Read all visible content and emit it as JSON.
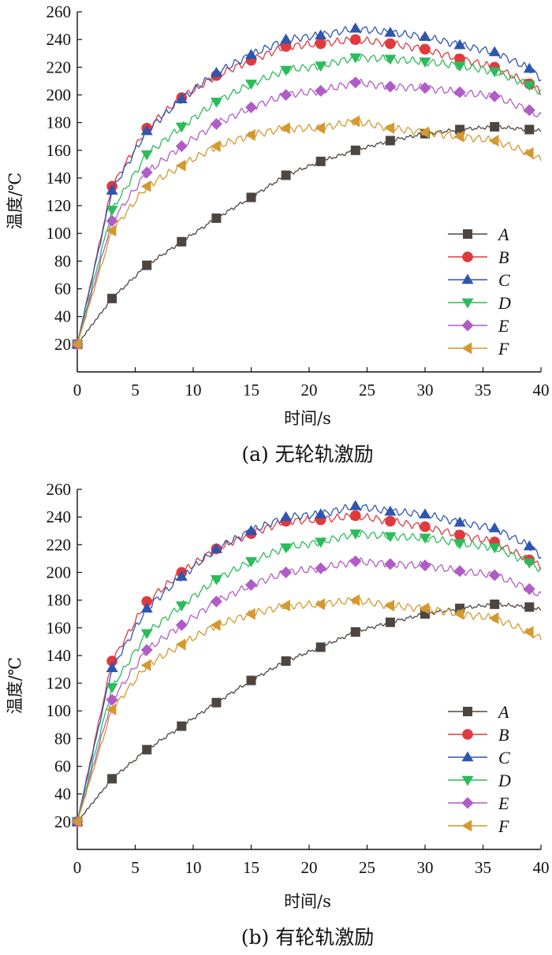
{
  "figures": [
    {
      "caption": "(a)  无轮轨激励",
      "chart_data": {
        "type": "line",
        "xlabel": "时间/s",
        "ylabel": "温度/℃",
        "xlim": [
          0,
          40
        ],
        "ylim": [
          0,
          260
        ],
        "xticks": [
          0,
          5,
          10,
          15,
          20,
          25,
          30,
          35,
          40
        ],
        "yticks": [
          20,
          40,
          60,
          80,
          100,
          120,
          140,
          160,
          180,
          200,
          220,
          240,
          260
        ],
        "x_tick_labels": [
          "0",
          "5",
          "10",
          "15",
          "20",
          "25",
          "30",
          "35",
          "40"
        ],
        "y_tick_labels": [
          "20",
          "40",
          "60",
          "80",
          "100",
          "120",
          "140",
          "160",
          "180",
          "200",
          "220",
          "240",
          "260"
        ],
        "grid": false,
        "legend_position": "bottom-right",
        "series": [
          {
            "name": "A",
            "color": "#4d4540",
            "marker": "square",
            "x": [
              0,
              3,
              6,
              9,
              12,
              15,
              18,
              21,
              24,
              27,
              30,
              33,
              36,
              39,
              40
            ],
            "y": [
              20,
              53,
              77,
              94,
              111,
              126,
              142,
              152,
              160,
              167,
              172,
              175,
              177,
              175,
              174
            ]
          },
          {
            "name": "B",
            "color": "#e0393e",
            "marker": "circle",
            "x": [
              0,
              3,
              6,
              9,
              12,
              15,
              18,
              21,
              24,
              27,
              30,
              33,
              36,
              39,
              40
            ],
            "y": [
              20,
              134,
              176,
              198,
              214,
              225,
              235,
              237,
              240,
              237,
              233,
              226,
              220,
              208,
              202
            ]
          },
          {
            "name": "C",
            "color": "#2d56b0",
            "marker": "triangle-up",
            "x": [
              0,
              3,
              6,
              9,
              12,
              15,
              18,
              21,
              24,
              27,
              30,
              33,
              36,
              39,
              40
            ],
            "y": [
              20,
              131,
              174,
              197,
              216,
              229,
              240,
              243,
              248,
              245,
              242,
              236,
              231,
              219,
              212
            ]
          },
          {
            "name": "D",
            "color": "#2bbc5a",
            "marker": "triangle-down",
            "x": [
              0,
              3,
              6,
              9,
              12,
              15,
              18,
              21,
              24,
              27,
              30,
              33,
              36,
              39,
              40
            ],
            "y": [
              20,
              117,
              157,
              177,
              195,
              208,
              218,
              221,
              227,
              226,
              224,
              221,
              217,
              207,
              202
            ]
          },
          {
            "name": "E",
            "color": "#b05cc8",
            "marker": "diamond",
            "x": [
              0,
              3,
              6,
              9,
              12,
              15,
              18,
              21,
              24,
              27,
              30,
              33,
              36,
              39,
              40
            ],
            "y": [
              20,
              109,
              144,
              163,
              179,
              191,
              200,
              203,
              209,
              206,
              205,
              202,
              199,
              189,
              184
            ]
          },
          {
            "name": "F",
            "color": "#d4992e",
            "marker": "triangle-left",
            "x": [
              0,
              3,
              6,
              9,
              12,
              15,
              18,
              21,
              24,
              27,
              30,
              33,
              36,
              39,
              40
            ],
            "y": [
              20,
              102,
              134,
              149,
              163,
              171,
              176,
              176,
              181,
              176,
              173,
              170,
              167,
              158,
              153
            ]
          }
        ]
      }
    },
    {
      "caption": "(b)  有轮轨激励",
      "chart_data": {
        "type": "line",
        "xlabel": "时间/s",
        "ylabel": "温度/℃",
        "xlim": [
          0,
          40
        ],
        "ylim": [
          0,
          260
        ],
        "xticks": [
          0,
          5,
          10,
          15,
          20,
          25,
          30,
          35,
          40
        ],
        "yticks": [
          20,
          40,
          60,
          80,
          100,
          120,
          140,
          160,
          180,
          200,
          220,
          240,
          260
        ],
        "x_tick_labels": [
          "0",
          "5",
          "10",
          "15",
          "20",
          "25",
          "30",
          "35",
          "40"
        ],
        "y_tick_labels": [
          "20",
          "40",
          "60",
          "80",
          "100",
          "120",
          "140",
          "160",
          "180",
          "200",
          "220",
          "240",
          "260"
        ],
        "grid": false,
        "legend_position": "bottom-right",
        "series": [
          {
            "name": "A",
            "color": "#4d4540",
            "marker": "square",
            "x": [
              0,
              3,
              6,
              9,
              12,
              15,
              18,
              21,
              24,
              27,
              30,
              33,
              36,
              39,
              40
            ],
            "y": [
              20,
              51,
              72,
              89,
              106,
              122,
              136,
              146,
              157,
              164,
              170,
              174,
              177,
              175,
              173
            ]
          },
          {
            "name": "B",
            "color": "#e0393e",
            "marker": "circle",
            "x": [
              0,
              3,
              6,
              9,
              12,
              15,
              18,
              21,
              24,
              27,
              30,
              33,
              36,
              39,
              40
            ],
            "y": [
              20,
              136,
              179,
              200,
              217,
              228,
              237,
              238,
              241,
              237,
              233,
              227,
              222,
              209,
              204
            ]
          },
          {
            "name": "C",
            "color": "#2d56b0",
            "marker": "triangle-up",
            "x": [
              0,
              3,
              6,
              9,
              12,
              15,
              18,
              21,
              24,
              27,
              30,
              33,
              36,
              39,
              40
            ],
            "y": [
              20,
              131,
              174,
              197,
              217,
              230,
              240,
              242,
              248,
              244,
              242,
              236,
              232,
              219,
              212
            ]
          },
          {
            "name": "D",
            "color": "#2bbc5a",
            "marker": "triangle-down",
            "x": [
              0,
              3,
              6,
              9,
              12,
              15,
              18,
              21,
              24,
              27,
              30,
              33,
              36,
              39,
              40
            ],
            "y": [
              20,
              117,
              156,
              176,
              195,
              208,
              218,
              222,
              228,
              226,
              225,
              221,
              218,
              207,
              202
            ]
          },
          {
            "name": "E",
            "color": "#b05cc8",
            "marker": "diamond",
            "x": [
              0,
              3,
              6,
              9,
              12,
              15,
              18,
              21,
              24,
              27,
              30,
              33,
              36,
              39,
              40
            ],
            "y": [
              20,
              108,
              144,
              162,
              179,
              191,
              200,
              203,
              208,
              206,
              205,
              201,
              198,
              188,
              183
            ]
          },
          {
            "name": "F",
            "color": "#d4992e",
            "marker": "triangle-left",
            "x": [
              0,
              3,
              6,
              9,
              12,
              15,
              18,
              21,
              24,
              27,
              30,
              33,
              36,
              39,
              40
            ],
            "y": [
              20,
              101,
              133,
              148,
              162,
              170,
              176,
              177,
              180,
              176,
              174,
              170,
              167,
              157,
              152
            ]
          }
        ]
      }
    }
  ]
}
